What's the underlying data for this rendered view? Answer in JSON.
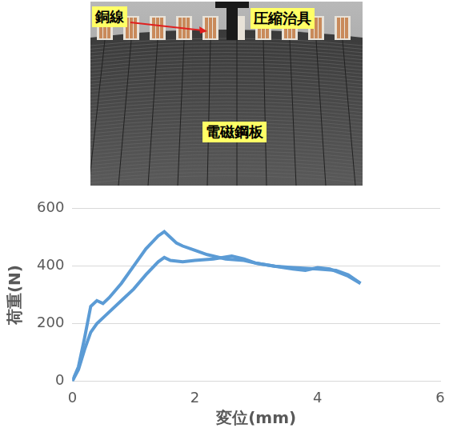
{
  "photo": {
    "labels": [
      "銅線",
      "圧縮治具",
      "電磁鋼板"
    ]
  },
  "chart_data": {
    "type": "line",
    "x_label": "変位(mm)",
    "y_label": "荷重(N)",
    "xlim": [
      0,
      6
    ],
    "xticks": [
      0,
      2,
      4,
      6
    ],
    "ylim": [
      0,
      600
    ],
    "yticks": [
      0,
      200,
      400,
      600
    ],
    "grid": true,
    "series": [
      {
        "color": "#5b9bd5",
        "x": [
          0,
          0.1,
          0.2,
          0.3,
          0.4,
          0.5,
          0.6,
          0.8,
          1.0,
          1.2,
          1.4,
          1.5,
          1.6,
          1.7,
          1.8,
          2.0,
          2.2,
          2.5,
          2.8,
          3.0,
          3.3,
          3.6,
          4.0,
          4.3,
          4.5,
          4.7
        ],
        "values": [
          0,
          50,
          150,
          260,
          280,
          270,
          290,
          340,
          400,
          460,
          505,
          520,
          500,
          480,
          470,
          455,
          440,
          425,
          420,
          410,
          400,
          395,
          390,
          385,
          370,
          340
        ]
      },
      {
        "color": "#5b9bd5",
        "x": [
          0,
          0.1,
          0.2,
          0.3,
          0.4,
          0.6,
          0.8,
          1.0,
          1.2,
          1.4,
          1.5,
          1.6,
          1.8,
          2.0,
          2.3,
          2.6,
          2.8,
          3.0,
          3.3,
          3.6,
          3.8,
          4.0,
          4.2,
          4.5,
          4.7
        ],
        "values": [
          0,
          40,
          110,
          170,
          200,
          240,
          280,
          320,
          370,
          415,
          430,
          420,
          415,
          420,
          425,
          435,
          425,
          410,
          400,
          390,
          385,
          395,
          390,
          365,
          340
        ]
      }
    ]
  }
}
